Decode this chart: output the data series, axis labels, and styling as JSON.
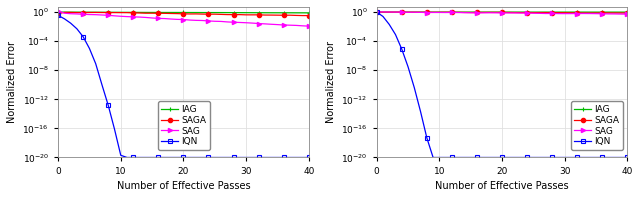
{
  "figsize": [
    6.4,
    1.98
  ],
  "dpi": 100,
  "background_color": "#ffffff",
  "xlim": [
    0,
    40
  ],
  "ylim": [
    1e-20,
    5
  ],
  "xlabel": "Number of Effective Passes",
  "ylabel": "Normalized Error",
  "xticks": [
    0,
    10,
    20,
    30,
    40
  ],
  "colors": {
    "SAG": "#ff00ff",
    "SAGA": "#ff0000",
    "IAG": "#00bb00",
    "IQN": "#0000ff"
  },
  "markers": {
    "SAG": ">",
    "SAGA": "o",
    "IAG": "+",
    "IQN": "s"
  },
  "grid_color": "#e0e0e0",
  "legend_fontsize": 6.5,
  "axis_fontsize": 7,
  "tick_fontsize": 6.5,
  "lw": 0.9,
  "ms": 3.0
}
